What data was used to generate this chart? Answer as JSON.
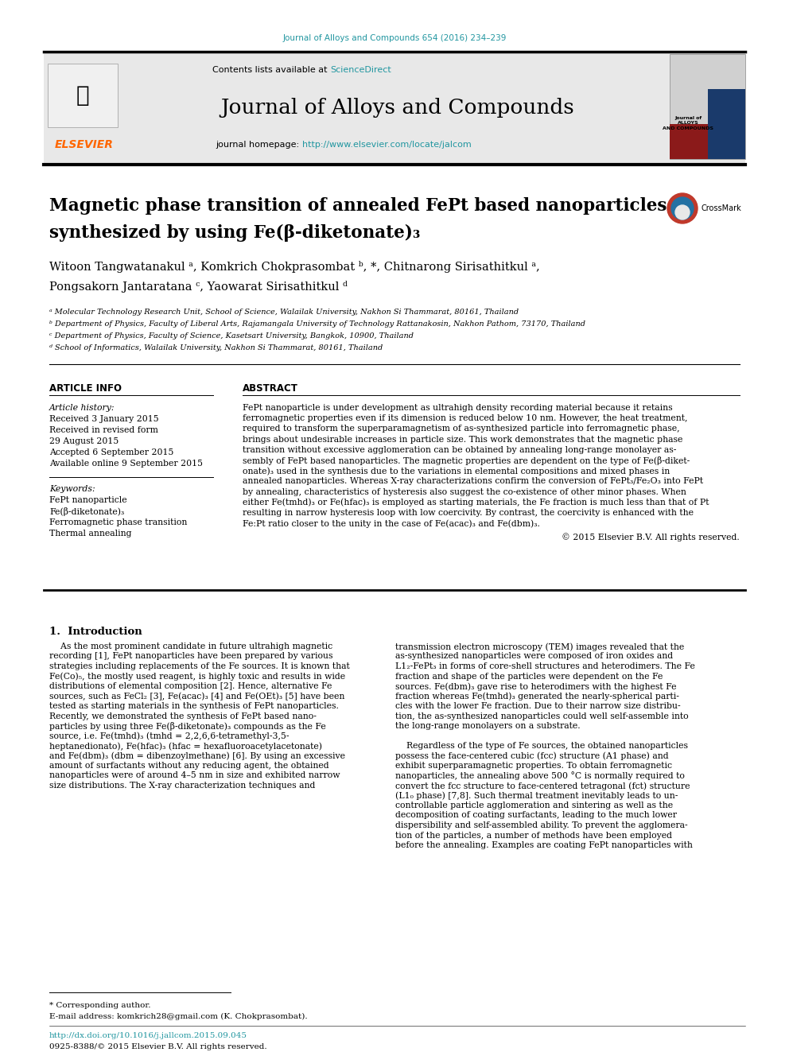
{
  "page_bg": "#ffffff",
  "top_link_color": "#2196a0",
  "top_link_text": "Journal of Alloys and Compounds 654 (2016) 234–239",
  "header_bg": "#e8e8e8",
  "header_title": "Journal of Alloys and Compounds",
  "header_subtitle_prefix": "Contents lists available at ",
  "header_sd": "ScienceDirect",
  "header_homepage_prefix": "journal homepage: ",
  "header_homepage": "http://www.elsevier.com/locate/jalcom",
  "link_color": "#2196a0",
  "paper_title_line1": "Magnetic phase transition of annealed FePt based nanoparticles",
  "paper_title_line2": "synthesized by using Fe(β-diketonate)₃",
  "authors": "Witoon Tangwatanakul ᵃ, Komkrich Chokprasombat ᵇ, *, Chitnarong Sirisathitkul ᵃ,",
  "authors2": "Pongsakorn Jantaratana ᶜ, Yaowarat Sirisathitkul ᵈ",
  "affil_a": "ᵃ Molecular Technology Research Unit, School of Science, Walailak University, Nakhon Si Thammarat, 80161, Thailand",
  "affil_b": "ᵇ Department of Physics, Faculty of Liberal Arts, Rajamangala University of Technology Rattanakosin, Nakhon Pathom, 73170, Thailand",
  "affil_c": "ᶜ Department of Physics, Faculty of Science, Kasetsart University, Bangkok, 10900, Thailand",
  "affil_d": "ᵈ School of Informatics, Walailak University, Nakhon Si Thammarat, 80161, Thailand",
  "section_article_info": "ARTICLE INFO",
  "section_abstract": "ABSTRACT",
  "article_history_label": "Article history:",
  "received1": "Received 3 January 2015",
  "received_revised": "Received in revised form",
  "received_revised2": "29 August 2015",
  "accepted": "Accepted 6 September 2015",
  "available": "Available online 9 September 2015",
  "keywords_label": "Keywords:",
  "kw1": "FePt nanoparticle",
  "kw2": "Fe(β-diketonate)₃",
  "kw3": "Ferromagnetic phase transition",
  "kw4": "Thermal annealing",
  "abstract_text": "FePt nanoparticle is under development as ultrahigh density recording material because it retains ferromagnetic properties even if its dimension is reduced below 10 nm. However, the heat treatment, required to transform the superparamagnetism of as-synthesized particle into ferromagnetic phase, brings about undesirable increases in particle size. This work demonstrates that the magnetic phase transition without excessive agglomeration can be obtained by annealing long-range monolayer assembly of FePt based nanoparticles. The magnetic properties are dependent on the type of Fe(β-diketonate)₃ used in the synthesis due to the variations in elemental compositions and mixed phases in annealed nanoparticles. Whereas X-ray characterizations confirm the conversion of FePt₃/Fe₂O₃ into FePt by annealing, characteristics of hysteresis also suggest the co-existence of other minor phases. When either Fe(tmhd)₃ or Fe(hfac)₃ is employed as starting materials, the Fe fraction is much less than that of Pt resulting in narrow hysteresis loop with low coercivity. By contrast, the coercivity is enhanced with the Fe:Pt ratio closer to the unity in the case of Fe(acac)₃ and Fe(dbm)₃.",
  "copyright": "© 2015 Elsevier B.V. All rights reserved.",
  "intro_heading": "1.  Introduction",
  "intro_col1_lines": [
    "    As the most prominent candidate in future ultrahigh magnetic",
    "recording [1], FePt nanoparticles have been prepared by various",
    "strategies including replacements of the Fe sources. It is known that",
    "Fe(Co)₅, the mostly used reagent, is highly toxic and results in wide",
    "distributions of elemental composition [2]. Hence, alternative Fe",
    "sources, such as FeCl₂ [3], Fe(acac)₃ [4] and Fe(OEt)₃ [5] have been",
    "tested as starting materials in the synthesis of FePt nanoparticles.",
    "Recently, we demonstrated the synthesis of FePt based nano-",
    "particles by using three Fe(β-diketonate)₃ compounds as the Fe",
    "source, i.e. Fe(tmhd)₃ (tmhd = 2,2,6,6-tetramethyl-3,5-",
    "heptanedionato), Fe(hfac)₃ (hfac = hexafluoroacetylacetonate)",
    "and Fe(dbm)₃ (dbm = dibenzoylmethane) [6]. By using an excessive",
    "amount of surfactants without any reducing agent, the obtained",
    "nanoparticles were of around 4–5 nm in size and exhibited narrow",
    "size distributions. The X-ray characterization techniques and"
  ],
  "intro_col2_lines": [
    "transmission electron microscopy (TEM) images revealed that the",
    "as-synthesized nanoparticles were composed of iron oxides and",
    "L1₂-FePt₃ in forms of core-shell structures and heterodimers. The Fe",
    "fraction and shape of the particles were dependent on the Fe",
    "sources. Fe(dbm)₃ gave rise to heterodimers with the highest Fe",
    "fraction whereas Fe(tmhd)₃ generated the nearly-spherical parti-",
    "cles with the lower Fe fraction. Due to their narrow size distribu-",
    "tion, the as-synthesized nanoparticles could well self-assemble into",
    "the long-range monolayers on a substrate.",
    "",
    "    Regardless of the type of Fe sources, the obtained nanoparticles",
    "possess the face-centered cubic (fcc) structure (A1 phase) and",
    "exhibit superparamagnetic properties. To obtain ferromagnetic",
    "nanoparticles, the annealing above 500 °C is normally required to",
    "convert the fcc structure to face-centered tetragonal (fct) structure",
    "(L1₀ phase) [7,8]. Such thermal treatment inevitably leads to un-",
    "controllable particle agglomeration and sintering as well as the",
    "decomposition of coating surfactants, leading to the much lower",
    "dispersibility and self-assembled ability. To prevent the agglomera-",
    "tion of the particles, a number of methods have been employed",
    "before the annealing. Examples are coating FePt nanoparticles with"
  ],
  "abstract_lines": [
    "FePt nanoparticle is under development as ultrahigh density recording material because it retains",
    "ferromagnetic properties even if its dimension is reduced below 10 nm. However, the heat treatment,",
    "required to transform the superparamagnetism of as-synthesized particle into ferromagnetic phase,",
    "brings about undesirable increases in particle size. This work demonstrates that the magnetic phase",
    "transition without excessive agglomeration can be obtained by annealing long-range monolayer as-",
    "sembly of FePt based nanoparticles. The magnetic properties are dependent on the type of Fe(β-diket-",
    "onate)₃ used in the synthesis due to the variations in elemental compositions and mixed phases in",
    "annealed nanoparticles. Whereas X-ray characterizations confirm the conversion of FePt₃/Fe₂O₃ into FePt",
    "by annealing, characteristics of hysteresis also suggest the co-existence of other minor phases. When",
    "either Fe(tmhd)₃ or Fe(hfac)₃ is employed as starting materials, the Fe fraction is much less than that of Pt",
    "resulting in narrow hysteresis loop with low coercivity. By contrast, the coercivity is enhanced with the",
    "Fe:Pt ratio closer to the unity in the case of Fe(acac)₃ and Fe(dbm)₃."
  ],
  "footnote_star": "* Corresponding author.",
  "footnote_email": "E-mail address: komkrich28@gmail.com (K. Chokprasombat).",
  "footnote_doi": "http://dx.doi.org/10.1016/j.jallcom.2015.09.045",
  "footnote_issn": "0925-8388/© 2015 Elsevier B.V. All rights reserved.",
  "divider_color": "#000000",
  "text_color": "#000000",
  "title_color": "#000000"
}
